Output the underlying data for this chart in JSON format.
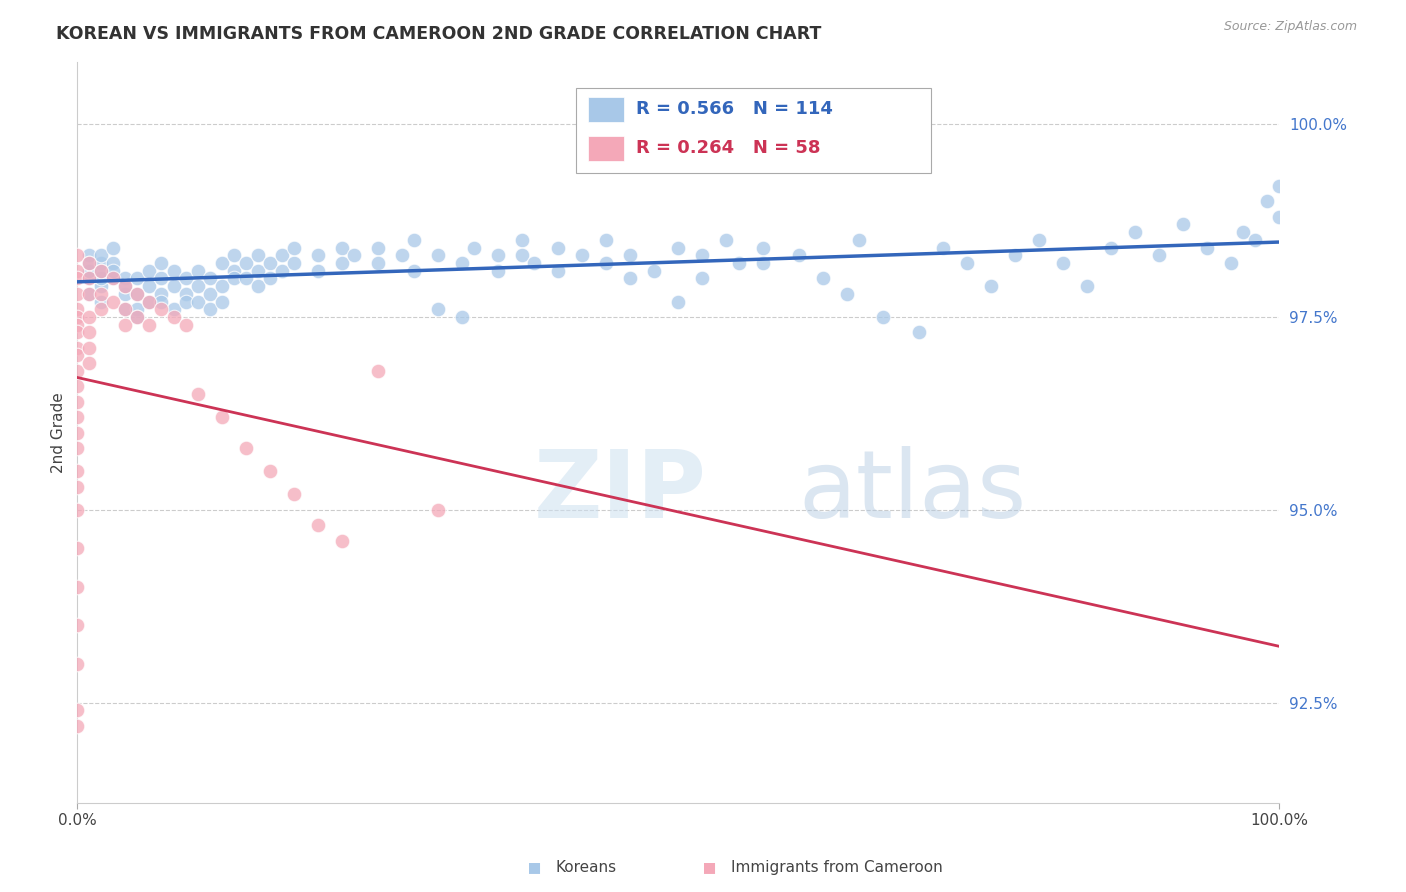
{
  "title": "KOREAN VS IMMIGRANTS FROM CAMEROON 2ND GRADE CORRELATION CHART",
  "source": "Source: ZipAtlas.com",
  "ylabel": "2nd Grade",
  "y_ticks": [
    92.5,
    95.0,
    97.5,
    100.0
  ],
  "y_tick_labels": [
    "92.5%",
    "95.0%",
    "97.5%",
    "100.0%"
  ],
  "x_range": [
    0.0,
    1.0
  ],
  "y_range": [
    91.2,
    100.8
  ],
  "blue_R": 0.566,
  "blue_N": 114,
  "pink_R": 0.264,
  "pink_N": 58,
  "blue_color": "#a8c8e8",
  "pink_color": "#f4a8b8",
  "blue_line_color": "#3366bb",
  "pink_line_color": "#cc3355",
  "watermark_zip": "ZIP",
  "watermark_atlas": "atlas",
  "background_color": "#ffffff",
  "grid_color": "#cccccc",
  "blue_scatter": [
    [
      0.01,
      98.0
    ],
    [
      0.01,
      97.8
    ],
    [
      0.01,
      98.1
    ],
    [
      0.01,
      98.3
    ],
    [
      0.01,
      98.2
    ],
    [
      0.02,
      97.9
    ],
    [
      0.02,
      98.0
    ],
    [
      0.02,
      98.2
    ],
    [
      0.02,
      98.3
    ],
    [
      0.02,
      98.1
    ],
    [
      0.02,
      97.7
    ],
    [
      0.03,
      98.0
    ],
    [
      0.03,
      98.2
    ],
    [
      0.03,
      98.4
    ],
    [
      0.03,
      98.1
    ],
    [
      0.04,
      97.8
    ],
    [
      0.04,
      98.0
    ],
    [
      0.04,
      97.6
    ],
    [
      0.04,
      97.9
    ],
    [
      0.05,
      97.8
    ],
    [
      0.05,
      98.0
    ],
    [
      0.05,
      97.6
    ],
    [
      0.05,
      97.5
    ],
    [
      0.06,
      97.9
    ],
    [
      0.06,
      98.1
    ],
    [
      0.06,
      97.7
    ],
    [
      0.07,
      98.0
    ],
    [
      0.07,
      97.8
    ],
    [
      0.07,
      97.7
    ],
    [
      0.07,
      98.2
    ],
    [
      0.08,
      97.9
    ],
    [
      0.08,
      98.1
    ],
    [
      0.08,
      97.6
    ],
    [
      0.09,
      98.0
    ],
    [
      0.09,
      97.8
    ],
    [
      0.09,
      97.7
    ],
    [
      0.1,
      98.1
    ],
    [
      0.1,
      97.9
    ],
    [
      0.1,
      97.7
    ],
    [
      0.11,
      98.0
    ],
    [
      0.11,
      97.8
    ],
    [
      0.11,
      97.6
    ],
    [
      0.12,
      98.2
    ],
    [
      0.12,
      97.9
    ],
    [
      0.12,
      97.7
    ],
    [
      0.13,
      98.1
    ],
    [
      0.13,
      98.3
    ],
    [
      0.13,
      98.0
    ],
    [
      0.14,
      98.2
    ],
    [
      0.14,
      98.0
    ],
    [
      0.15,
      98.3
    ],
    [
      0.15,
      98.1
    ],
    [
      0.15,
      97.9
    ],
    [
      0.16,
      98.2
    ],
    [
      0.16,
      98.0
    ],
    [
      0.17,
      98.3
    ],
    [
      0.17,
      98.1
    ],
    [
      0.18,
      98.2
    ],
    [
      0.18,
      98.4
    ],
    [
      0.2,
      98.3
    ],
    [
      0.2,
      98.1
    ],
    [
      0.22,
      98.4
    ],
    [
      0.22,
      98.2
    ],
    [
      0.23,
      98.3
    ],
    [
      0.25,
      98.4
    ],
    [
      0.25,
      98.2
    ],
    [
      0.27,
      98.3
    ],
    [
      0.28,
      98.1
    ],
    [
      0.28,
      98.5
    ],
    [
      0.3,
      97.6
    ],
    [
      0.3,
      98.3
    ],
    [
      0.32,
      98.2
    ],
    [
      0.32,
      97.5
    ],
    [
      0.33,
      98.4
    ],
    [
      0.35,
      98.3
    ],
    [
      0.35,
      98.1
    ],
    [
      0.37,
      98.5
    ],
    [
      0.37,
      98.3
    ],
    [
      0.38,
      98.2
    ],
    [
      0.4,
      98.1
    ],
    [
      0.4,
      98.4
    ],
    [
      0.42,
      98.3
    ],
    [
      0.44,
      98.5
    ],
    [
      0.44,
      98.2
    ],
    [
      0.46,
      98.0
    ],
    [
      0.46,
      98.3
    ],
    [
      0.48,
      98.1
    ],
    [
      0.5,
      97.7
    ],
    [
      0.5,
      98.4
    ],
    [
      0.52,
      98.3
    ],
    [
      0.52,
      98.0
    ],
    [
      0.54,
      98.5
    ],
    [
      0.55,
      98.2
    ],
    [
      0.57,
      98.4
    ],
    [
      0.57,
      98.2
    ],
    [
      0.6,
      98.3
    ],
    [
      0.62,
      98.0
    ],
    [
      0.64,
      97.8
    ],
    [
      0.65,
      98.5
    ],
    [
      0.67,
      97.5
    ],
    [
      0.7,
      97.3
    ],
    [
      0.72,
      98.4
    ],
    [
      0.74,
      98.2
    ],
    [
      0.76,
      97.9
    ],
    [
      0.78,
      98.3
    ],
    [
      0.8,
      98.5
    ],
    [
      0.82,
      98.2
    ],
    [
      0.84,
      97.9
    ],
    [
      0.86,
      98.4
    ],
    [
      0.88,
      98.6
    ],
    [
      0.9,
      98.3
    ],
    [
      0.92,
      98.7
    ],
    [
      0.94,
      98.4
    ],
    [
      0.96,
      98.2
    ],
    [
      0.97,
      98.6
    ],
    [
      0.98,
      98.5
    ],
    [
      0.99,
      99.0
    ],
    [
      1.0,
      98.8
    ],
    [
      1.0,
      99.2
    ]
  ],
  "pink_scatter": [
    [
      0.0,
      98.3
    ],
    [
      0.0,
      98.1
    ],
    [
      0.0,
      98.0
    ],
    [
      0.0,
      97.8
    ],
    [
      0.0,
      97.6
    ],
    [
      0.0,
      97.5
    ],
    [
      0.0,
      97.4
    ],
    [
      0.0,
      97.3
    ],
    [
      0.0,
      97.1
    ],
    [
      0.0,
      97.0
    ],
    [
      0.0,
      96.8
    ],
    [
      0.0,
      96.6
    ],
    [
      0.0,
      96.4
    ],
    [
      0.0,
      96.2
    ],
    [
      0.0,
      96.0
    ],
    [
      0.0,
      95.8
    ],
    [
      0.0,
      95.5
    ],
    [
      0.0,
      95.3
    ],
    [
      0.0,
      95.0
    ],
    [
      0.0,
      94.5
    ],
    [
      0.0,
      94.0
    ],
    [
      0.0,
      93.5
    ],
    [
      0.0,
      93.0
    ],
    [
      0.0,
      92.4
    ],
    [
      0.0,
      92.2
    ],
    [
      0.01,
      98.2
    ],
    [
      0.01,
      98.0
    ],
    [
      0.01,
      97.8
    ],
    [
      0.01,
      97.5
    ],
    [
      0.01,
      97.3
    ],
    [
      0.01,
      97.1
    ],
    [
      0.01,
      96.9
    ],
    [
      0.02,
      98.1
    ],
    [
      0.02,
      97.8
    ],
    [
      0.02,
      97.6
    ],
    [
      0.03,
      98.0
    ],
    [
      0.03,
      97.7
    ],
    [
      0.04,
      97.9
    ],
    [
      0.04,
      97.6
    ],
    [
      0.04,
      97.4
    ],
    [
      0.05,
      97.8
    ],
    [
      0.05,
      97.5
    ],
    [
      0.06,
      97.7
    ],
    [
      0.06,
      97.4
    ],
    [
      0.07,
      97.6
    ],
    [
      0.08,
      97.5
    ],
    [
      0.09,
      97.4
    ],
    [
      0.1,
      96.5
    ],
    [
      0.12,
      96.2
    ],
    [
      0.14,
      95.8
    ],
    [
      0.16,
      95.5
    ],
    [
      0.18,
      95.2
    ],
    [
      0.2,
      94.8
    ],
    [
      0.22,
      94.6
    ],
    [
      0.25,
      96.8
    ],
    [
      0.3,
      95.0
    ]
  ]
}
